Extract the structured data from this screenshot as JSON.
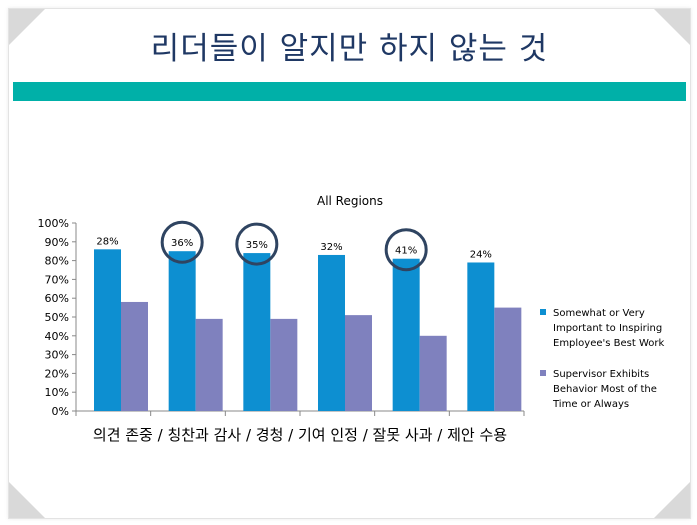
{
  "slide": {
    "title": "리더들이 알지만 하지 않는 것",
    "band_color": "#00b0a8"
  },
  "chart_data": {
    "type": "bar",
    "title": "All Regions",
    "categories": [
      "의견 존중 /",
      "칭찬과 감사 /",
      "경청 /",
      "기여 인정 /",
      "잘못 사과 /",
      "제안 수용"
    ],
    "x_label_line": "의견 존중 / 칭찬과 감사 / 경청 /  기여 인정 / 잘못 사과 / 제안 수용",
    "series": [
      {
        "name": "Somewhat or Very Important to Inspiring Employee's Best Work",
        "legend_lines": [
          "Somewhat or Very",
          "Important to Inspiring",
          "Employee's Best Work"
        ],
        "color": "#0d8fd1",
        "values": [
          86,
          85,
          84,
          83,
          81,
          79
        ]
      },
      {
        "name": "Supervisor Exhibits Behavior Most of the Time or Always",
        "legend_lines": [
          "Supervisor Exhibits",
          "Behavior Most of the",
          "Time or Always"
        ],
        "color": "#7f81be",
        "values": [
          58,
          49,
          49,
          51,
          40,
          55
        ]
      }
    ],
    "gap_labels": [
      "28%",
      "36%",
      "35%",
      "32%",
      "41%",
      "24%"
    ],
    "circled": [
      false,
      true,
      true,
      false,
      true,
      false
    ],
    "circle_color": "#2f4461",
    "y_ticks": [
      "0%",
      "10%",
      "20%",
      "30%",
      "40%",
      "50%",
      "60%",
      "70%",
      "80%",
      "90%",
      "100%"
    ],
    "ylim": [
      0,
      100
    ],
    "legend_position": "right",
    "grid": false
  }
}
